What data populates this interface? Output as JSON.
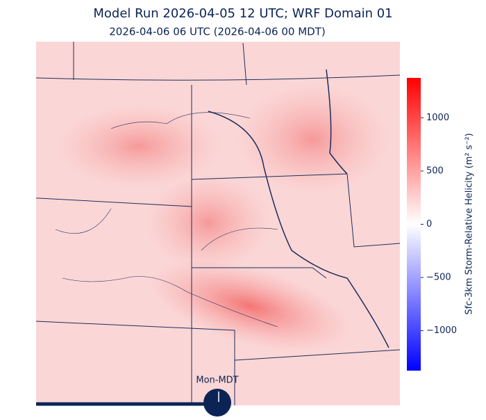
{
  "header": {
    "title": "Model Run 2026-04-05 12 UTC; WRF Domain 01",
    "subtitle": "2026-04-06 06 UTC  (2026-04-06 00 MDT)"
  },
  "colorbar": {
    "label": "Sfc-3km Storm-Relative Helicity (m² s⁻²)",
    "lim": [
      -1375,
      1375
    ],
    "ticks": [
      {
        "value": -1000,
        "label": "−1000"
      },
      {
        "value": -500,
        "label": "−500"
      },
      0,
      500,
      1000
    ]
  },
  "timeline": {
    "label": "Mon-MDT"
  }
}
